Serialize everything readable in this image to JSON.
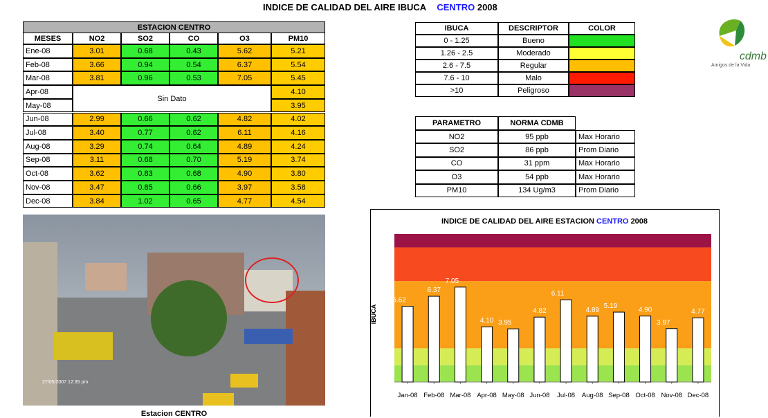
{
  "header": {
    "title": "INDICE DE CALIDAD DEL AIRE IBUCA",
    "station": "CENTRO",
    "year": "2008"
  },
  "station_table": {
    "title": "ESTACION  CENTRO",
    "columns": [
      "MESES",
      "NO2",
      "SO2",
      "CO",
      "O3",
      "PM10"
    ],
    "rows": [
      [
        "Ene-08",
        "3.01",
        "0.68",
        "0.43",
        "5.62",
        "5.21"
      ],
      [
        "Feb-08",
        "3.66",
        "0.94",
        "0.54",
        "6.37",
        "5.54"
      ],
      [
        "Mar-08",
        "3.81",
        "0.96",
        "0.53",
        "7.05",
        "5.45"
      ],
      [
        "Apr-08",
        null,
        null,
        null,
        null,
        "4.10"
      ],
      [
        "May-08",
        null,
        null,
        null,
        null,
        "3.95"
      ],
      [
        "Jun-08",
        "2.99",
        "0.66",
        "0.62",
        "4.82",
        "4.02"
      ],
      [
        "Jul-08",
        "3.40",
        "0.77",
        "0.62",
        "6.11",
        "4.16"
      ],
      [
        "Aug-08",
        "3.29",
        "0.74",
        "0.64",
        "4.89",
        "4.24"
      ],
      [
        "Sep-08",
        "3.11",
        "0.68",
        "0.70",
        "5.19",
        "3.74"
      ],
      [
        "Oct-08",
        "3.62",
        "0.83",
        "0.68",
        "4.90",
        "3.80"
      ],
      [
        "Nov-08",
        "3.47",
        "0.85",
        "0.66",
        "3.97",
        "3.58"
      ],
      [
        "Dec-08",
        "3.84",
        "1.02",
        "0.65",
        "4.77",
        "4.54"
      ]
    ],
    "no_data": "Sin Dato"
  },
  "ibuca_table": {
    "columns": [
      "IBUCA",
      "DESCRIPTOR",
      "COLOR"
    ],
    "rows": [
      {
        "range": "0 - 1.25",
        "descriptor": "Bueno",
        "color": "#22e022"
      },
      {
        "range": "1.26 - 2.5",
        "descriptor": "Moderado",
        "color": "#ffff33"
      },
      {
        "range": "2.6 - 7.5",
        "descriptor": "Regular",
        "color": "#ffbf00"
      },
      {
        "range": "7.6 - 10",
        "descriptor": "Malo",
        "color": "#ff1a00"
      },
      {
        "range": ">10",
        "descriptor": "Peligroso",
        "color": "#993366"
      }
    ]
  },
  "norms_table": {
    "columns": [
      "PARAMETRO",
      "NORMA CDMB"
    ],
    "rows": [
      [
        "NO2",
        "95 ppb",
        "Max Horario"
      ],
      [
        "SO2",
        "86 ppb",
        "Prom Diario"
      ],
      [
        "CO",
        "31 ppm",
        "Max Horario"
      ],
      [
        "O3",
        "54 ppb",
        "Max Horario"
      ],
      [
        "PM10",
        "134 Ug/m3",
        "Prom Diario"
      ]
    ]
  },
  "logo": {
    "name": "cdmb",
    "tagline": "Amigos de la Vida"
  },
  "photo": {
    "timestamp": "27/05/2007 12:35 pm",
    "caption": "Estacion CENTRO"
  },
  "chart_data": {
    "type": "bar",
    "title": "INDICE DE CALIDAD DEL AIRE ESTACION",
    "title_station": "CENTRO",
    "title_year": "2008",
    "y_label": "IBUCA",
    "categories": [
      "Jan-08",
      "Feb-08",
      "Mar-08",
      "Apr-08",
      "May-08",
      "Jun-08",
      "Jul-08",
      "Aug-08",
      "Sep-08",
      "Oct-08",
      "Nov-08",
      "Dec-08"
    ],
    "values": [
      5.62,
      6.37,
      7.05,
      4.1,
      3.95,
      4.82,
      6.11,
      4.89,
      5.19,
      4.9,
      3.97,
      4.77
    ],
    "value_labels": [
      "5.62",
      "6.37",
      "7.05",
      "4.10",
      "3.95",
      "4.82",
      "6.11",
      "4.89",
      "5.19",
      "4.90",
      "3.97",
      "4.77"
    ],
    "color": "#ffffff",
    "ylim": [
      0,
      11
    ],
    "bands": [
      {
        "from": 0,
        "to": 1.25,
        "color": "#9be34f"
      },
      {
        "from": 1.25,
        "to": 2.5,
        "color": "#d6ec55"
      },
      {
        "from": 2.5,
        "to": 7.5,
        "color": "#fa9f17"
      },
      {
        "from": 7.5,
        "to": 10,
        "color": "#f74a1f"
      },
      {
        "from": 10,
        "to": 11,
        "color": "#9c1446"
      }
    ]
  }
}
